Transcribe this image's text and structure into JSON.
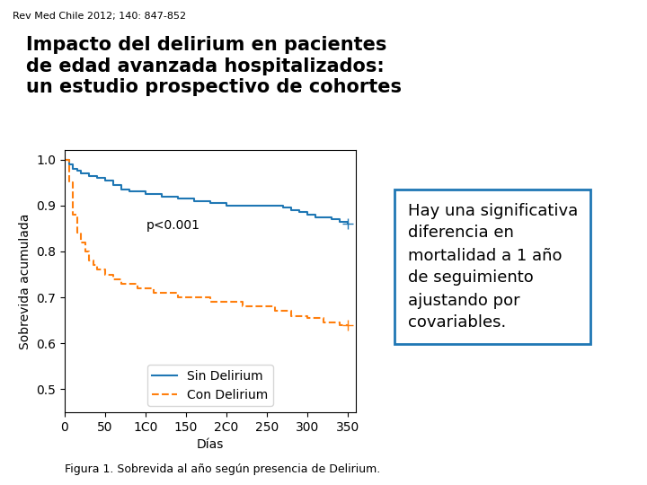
{
  "chart_data": {
    "type": "step",
    "header": "Rev Med Chile 2012; 140: 847-852",
    "title": "Impacto del delirium en pacientes\nde edad avanzada hospitalizados:\nun estudio prospectivo de cohortes",
    "x_label": "Días",
    "y_label": "Sobrevida acumulada",
    "annotations": [
      "p<0.001"
    ],
    "note_lines": [
      "Hay una significativa",
      "diferencia en",
      "mortalidad a 1 año",
      "de seguimiento",
      "ajustando por",
      "covariables."
    ],
    "caption": "Figura 1. Sobrevida al año según presencia de Delirium.",
    "xlim": [
      0,
      360
    ],
    "ylim": [
      0.45,
      1.02
    ],
    "xticks": [
      0,
      50,
      {
        "value": 100,
        "label": "1C0"
      },
      150,
      {
        "value": 200,
        "label": "2C0"
      },
      250,
      300,
      350
    ],
    "yticks": [
      0.5,
      0.6,
      0.7,
      0.8,
      0.9,
      {
        "value": 1.0,
        "label": "1.0"
      }
    ],
    "legend": "lower center",
    "grid": false,
    "series": [
      {
        "name": "Sin Delirium",
        "line_style": "solid",
        "x": [
          0,
          5,
          10,
          15,
          20,
          30,
          40,
          50,
          60,
          70,
          80,
          100,
          120,
          140,
          160,
          180,
          200,
          220,
          240,
          260,
          270,
          280,
          290,
          300,
          310,
          320,
          330,
          340,
          350
        ],
        "values": [
          1.0,
          0.99,
          0.98,
          0.975,
          0.97,
          0.965,
          0.96,
          0.955,
          0.945,
          0.935,
          0.93,
          0.925,
          0.92,
          0.915,
          0.91,
          0.905,
          0.9,
          0.9,
          0.9,
          0.9,
          0.895,
          0.89,
          0.885,
          0.88,
          0.875,
          0.875,
          0.87,
          0.865,
          0.86
        ],
        "censored_x": [
          350
        ],
        "censored_values": [
          0.86
        ]
      },
      {
        "name": "Con Delirium",
        "line_style": "dashed",
        "x": [
          0,
          5,
          10,
          15,
          20,
          25,
          30,
          35,
          40,
          50,
          60,
          70,
          80,
          90,
          100,
          110,
          120,
          130,
          140,
          150,
          160,
          170,
          180,
          200,
          220,
          240,
          260,
          280,
          300,
          320,
          340,
          350
        ],
        "values": [
          1.0,
          0.95,
          0.88,
          0.84,
          0.82,
          0.8,
          0.78,
          0.77,
          0.76,
          0.75,
          0.74,
          0.73,
          0.73,
          0.72,
          0.72,
          0.71,
          0.71,
          0.71,
          0.7,
          0.7,
          0.7,
          0.7,
          0.69,
          0.69,
          0.68,
          0.68,
          0.67,
          0.66,
          0.655,
          0.645,
          0.64,
          0.64
        ],
        "censored_x": [
          350
        ],
        "censored_values": [
          0.64
        ]
      }
    ]
  }
}
